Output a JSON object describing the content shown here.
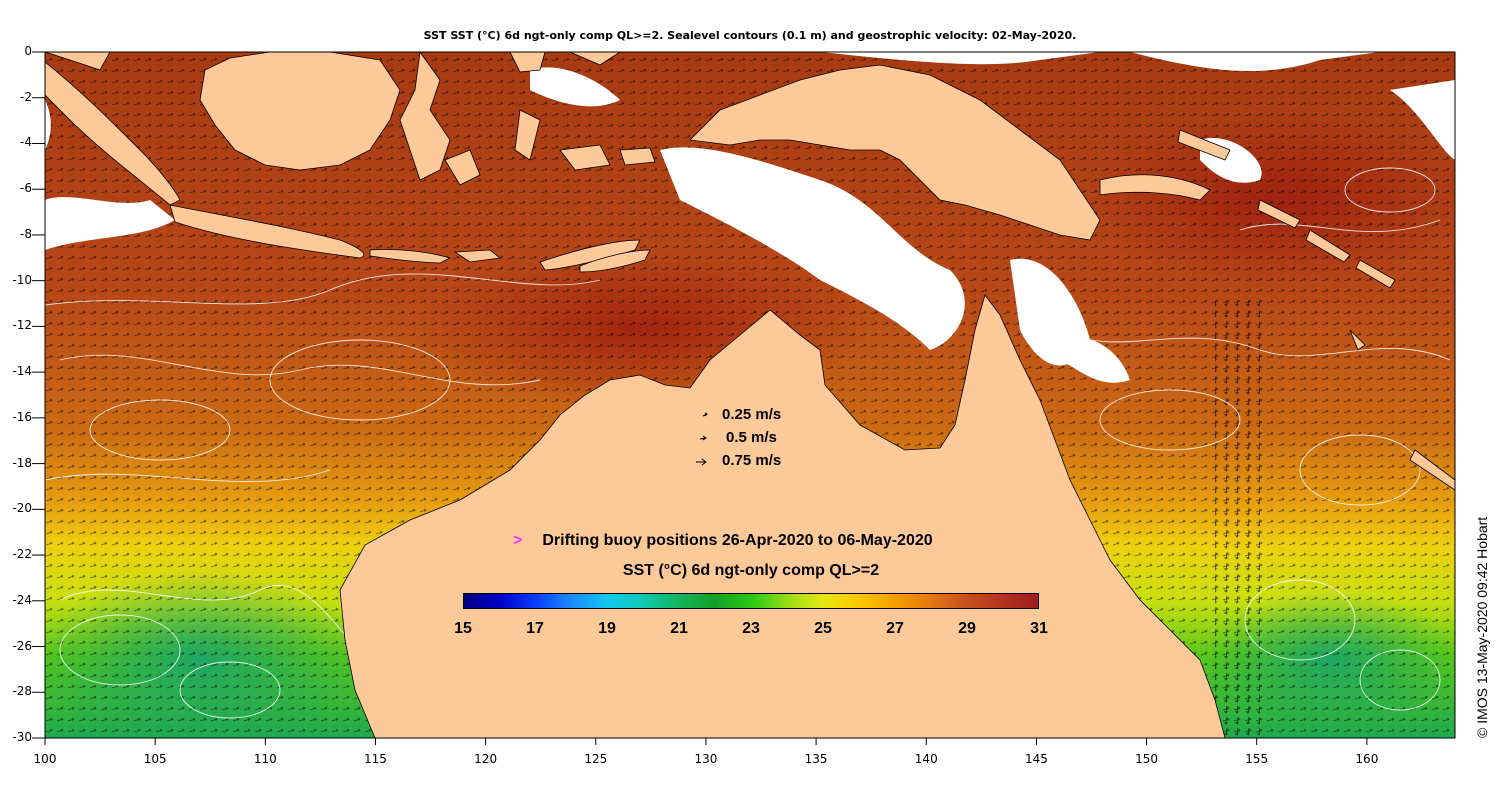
{
  "title": "SST SST (°C) 6d ngt-only comp QL>=2. Sealevel contours (0.1 m) and geostrophic velocity: 02-May-2020.",
  "axes": {
    "lon_min": 100,
    "lon_max": 164,
    "lat_min": -30,
    "lat_max": 0,
    "x_ticks": [
      "100",
      "105",
      "110",
      "115",
      "120",
      "125",
      "130",
      "135",
      "140",
      "145",
      "150",
      "155",
      "160"
    ],
    "y_ticks": [
      "0",
      "-2",
      "-4",
      "-6",
      "-8",
      "-10",
      "-12",
      "-14",
      "-16",
      "-18",
      "-20",
      "-22",
      "-24",
      "-26",
      "-28",
      "-30"
    ]
  },
  "velocity_legend": [
    {
      "label": "0.25 m/s",
      "speed": 0.25
    },
    {
      "label": "0.5 m/s",
      "speed": 0.5
    },
    {
      "label": "0.75 m/s",
      "speed": 0.75
    }
  ],
  "buoy_legend": {
    "symbol": ">",
    "label": "Drifting buoy positions 26-Apr-2020 to 06-May-2020",
    "color": "#ff33ff"
  },
  "colorbar": {
    "title": "SST (°C) 6d ngt-only comp QL>=2",
    "min": 15,
    "max": 31,
    "ticks": [
      "15",
      "17",
      "19",
      "21",
      "23",
      "25",
      "27",
      "29",
      "31"
    ],
    "colors": [
      "#00007f",
      "#0000c8",
      "#0a3cff",
      "#1e8cff",
      "#10c8f0",
      "#10c8b0",
      "#14b45a",
      "#14a028",
      "#28c814",
      "#96dc14",
      "#e6e614",
      "#ffc800",
      "#f5a000",
      "#e67814",
      "#c8501e",
      "#b4321e",
      "#a01e1e"
    ]
  },
  "credit": "© IMOS 13-May-2020 09:42 Hobart",
  "colors": {
    "land": "#fdc999",
    "cloud": "#ffffff",
    "contour": "#ffffff",
    "arrow": "#000000"
  }
}
